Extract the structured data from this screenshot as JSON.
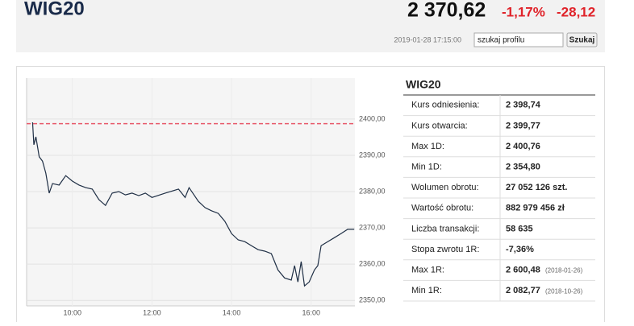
{
  "header": {
    "title": "WIG20",
    "price": "2 370,62",
    "change_pct": "-1,17%",
    "change": "-28,12",
    "timestamp": "2019-01-28 17:15:00",
    "search_placeholder": "szukaj profilu",
    "search_button": "Szukaj"
  },
  "chart_data": {
    "type": "line",
    "x": [
      "09:00",
      "09:02",
      "09:05",
      "09:10",
      "09:15",
      "09:20",
      "09:25",
      "09:30",
      "09:40",
      "09:50",
      "10:00",
      "10:10",
      "10:20",
      "10:30",
      "10:40",
      "10:50",
      "11:00",
      "11:10",
      "11:20",
      "11:30",
      "11:40",
      "11:50",
      "12:00",
      "12:20",
      "12:40",
      "12:50",
      "12:56",
      "13:10",
      "13:20",
      "13:30",
      "13:40",
      "13:50",
      "14:00",
      "14:10",
      "14:20",
      "14:30",
      "14:40",
      "14:50",
      "15:00",
      "15:10",
      "15:20",
      "15:30",
      "15:35",
      "15:40",
      "15:45",
      "15:50",
      "15:57",
      "16:05",
      "16:10",
      "16:15",
      "16:25",
      "16:35",
      "16:45",
      "16:55",
      "17:05"
    ],
    "series": [
      {
        "color": "#1f2f45",
        "values": [
          2399.1,
          2392.9,
          2395.1,
          2389.6,
          2388.4,
          2385.1,
          2379.6,
          2382.2,
          2381.8,
          2384.4,
          2382.9,
          2381.8,
          2381.1,
          2380.7,
          2377.8,
          2376.2,
          2379.6,
          2380.0,
          2379.1,
          2379.6,
          2378.9,
          2379.6,
          2378.4,
          2379.6,
          2380.7,
          2378.4,
          2381.1,
          2377.3,
          2375.6,
          2374.7,
          2374.0,
          2371.8,
          2368.4,
          2366.7,
          2366.2,
          2365.1,
          2364.0,
          2363.6,
          2362.9,
          2358.4,
          2356.2,
          2355.6,
          2359.6,
          2355.1,
          2360.7,
          2354.0,
          2355.1,
          2358.4,
          2359.6,
          2365.1,
          2366.2,
          2367.3,
          2368.4,
          2369.6,
          2369.6
        ]
      }
    ],
    "reference": {
      "value": 2398.74,
      "color": "#e8596a"
    },
    "xlim": [
      "08:51",
      "17:06"
    ],
    "xticks": [
      "10:00",
      "12:00",
      "14:00",
      "16:00"
    ],
    "ylim": [
      2348.5,
      2411.3
    ],
    "yticks": [
      {
        "value": 2350,
        "label": "2350,00"
      },
      {
        "value": 2360,
        "label": "2360,00"
      },
      {
        "value": 2370,
        "label": "2370,00"
      },
      {
        "value": 2380,
        "label": "2380,00"
      },
      {
        "value": 2390,
        "label": "2390,00"
      },
      {
        "value": 2400,
        "label": "2400,00"
      }
    ],
    "grid": true
  },
  "table": {
    "title": "WIG20",
    "rows": [
      [
        "Kurs odniesienia:",
        "2 398,74"
      ],
      [
        "Kurs otwarcia:",
        "2 399,77"
      ],
      [
        "Max 1D:",
        "2 400,76"
      ],
      [
        "Min 1D:",
        "2 354,80"
      ],
      [
        "Wolumen obrotu:",
        "27 052 126 szt."
      ],
      [
        "Wartość obrotu:",
        "882 979 456 zł"
      ],
      [
        "Liczba transakcji:",
        "58 635"
      ],
      [
        "Stopa zwrotu 1R:",
        "-7,36%"
      ],
      [
        "Max 1R:",
        "2 600,48",
        "(2018-01-26)"
      ],
      [
        "Min 1R:",
        "2 082,77",
        "(2018-10-26)"
      ]
    ]
  }
}
